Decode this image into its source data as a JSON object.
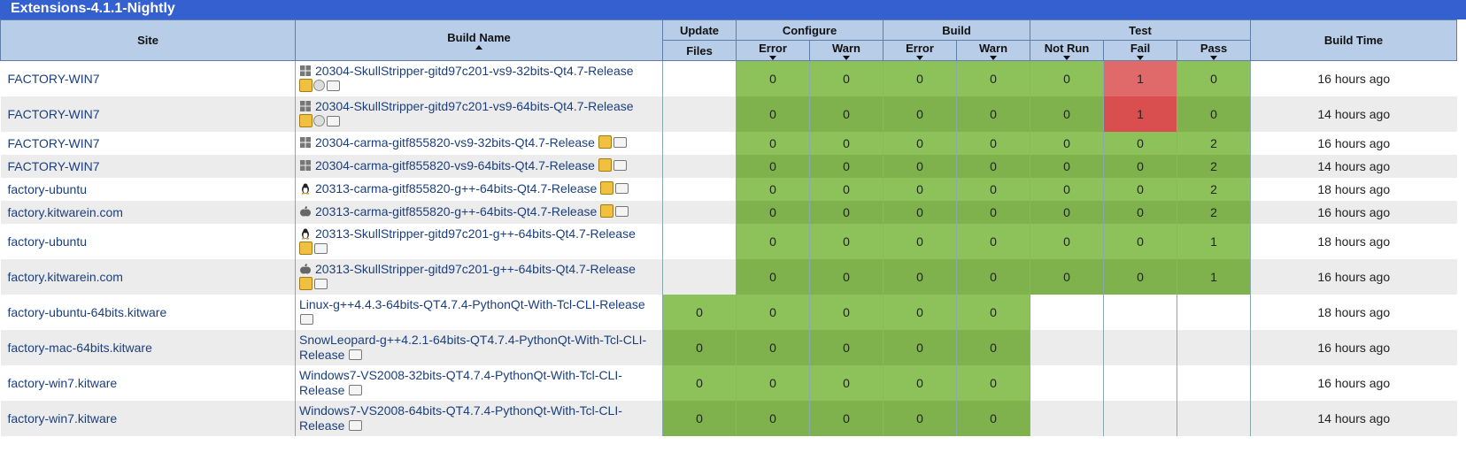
{
  "dashboard": {
    "title": "Extensions-4.1.1-Nightly"
  },
  "headers": {
    "site": "Site",
    "build_name": "Build Name",
    "update": "Update",
    "files": "Files",
    "configure": "Configure",
    "build": "Build",
    "test": "Test",
    "error": "Error",
    "warn": "Warn",
    "not_run": "Not Run",
    "fail": "Fail",
    "pass": "Pass",
    "build_time": "Build Time"
  },
  "colors": {
    "header_bar": "#3560cf",
    "pass_green": "#8dc15a",
    "fail_red": "#e06a6a"
  },
  "rows": [
    {
      "site": "FACTORY-WIN7",
      "os_icon": "windows-icon",
      "name": "20304-SkullStripper-gitd97c201-vs9-32bits-Qt4.7-Release",
      "icons": [
        "package-icon",
        "info-icon",
        "note-icon"
      ],
      "icons_wrap": true,
      "update": "",
      "cfg_err": "0",
      "cfg_warn": "0",
      "bld_err": "0",
      "bld_warn": "0",
      "not_run": "0",
      "fail": "1",
      "pass": "0",
      "time": "16 hours ago",
      "h": 40
    },
    {
      "site": "FACTORY-WIN7",
      "os_icon": "windows-icon",
      "name": "20304-SkullStripper-gitd97c201-vs9-64bits-Qt4.7-Release",
      "icons": [
        "package-icon",
        "info-icon",
        "note-icon"
      ],
      "icons_wrap": true,
      "update": "",
      "cfg_err": "0",
      "cfg_warn": "0",
      "bld_err": "0",
      "bld_warn": "0",
      "not_run": "0",
      "fail": "1",
      "pass": "0",
      "time": "14 hours ago",
      "h": 40
    },
    {
      "site": "FACTORY-WIN7",
      "os_icon": "windows-icon",
      "name": "20304-carma-gitf855820-vs9-32bits-Qt4.7-Release",
      "icons": [
        "package-icon",
        "note-icon"
      ],
      "icons_wrap": false,
      "update": "",
      "cfg_err": "0",
      "cfg_warn": "0",
      "bld_err": "0",
      "bld_warn": "0",
      "not_run": "0",
      "fail": "0",
      "pass": "2",
      "time": "16 hours ago",
      "h": 26
    },
    {
      "site": "FACTORY-WIN7",
      "os_icon": "windows-icon",
      "name": "20304-carma-gitf855820-vs9-64bits-Qt4.7-Release",
      "icons": [
        "package-icon",
        "note-icon"
      ],
      "icons_wrap": false,
      "update": "",
      "cfg_err": "0",
      "cfg_warn": "0",
      "bld_err": "0",
      "bld_warn": "0",
      "not_run": "0",
      "fail": "0",
      "pass": "2",
      "time": "14 hours ago",
      "h": 26
    },
    {
      "site": "factory-ubuntu",
      "os_icon": "linux-icon",
      "name": "20313-carma-gitf855820-g++-64bits-Qt4.7-Release",
      "icons": [
        "package-icon",
        "note-icon"
      ],
      "icons_wrap": false,
      "update": "",
      "cfg_err": "0",
      "cfg_warn": "0",
      "bld_err": "0",
      "bld_warn": "0",
      "not_run": "0",
      "fail": "0",
      "pass": "2",
      "time": "18 hours ago",
      "h": 26
    },
    {
      "site": "factory.kitwarein.com",
      "os_icon": "apple-icon",
      "name": "20313-carma-gitf855820-g++-64bits-Qt4.7-Release",
      "icons": [
        "package-icon",
        "note-icon"
      ],
      "icons_wrap": false,
      "update": "",
      "cfg_err": "0",
      "cfg_warn": "0",
      "bld_err": "0",
      "bld_warn": "0",
      "not_run": "0",
      "fail": "0",
      "pass": "2",
      "time": "16 hours ago",
      "h": 26
    },
    {
      "site": "factory-ubuntu",
      "os_icon": "linux-icon",
      "name": "20313-SkullStripper-gitd97c201-g++-64bits-Qt4.7-Release",
      "icons": [
        "package-icon",
        "note-icon"
      ],
      "icons_wrap": true,
      "update": "",
      "cfg_err": "0",
      "cfg_warn": "0",
      "bld_err": "0",
      "bld_warn": "0",
      "not_run": "0",
      "fail": "0",
      "pass": "1",
      "time": "18 hours ago",
      "h": 40
    },
    {
      "site": "factory.kitwarein.com",
      "os_icon": "apple-icon",
      "name": "20313-SkullStripper-gitd97c201-g++-64bits-Qt4.7-Release",
      "icons": [
        "package-icon",
        "note-icon"
      ],
      "icons_wrap": true,
      "update": "",
      "cfg_err": "0",
      "cfg_warn": "0",
      "bld_err": "0",
      "bld_warn": "0",
      "not_run": "0",
      "fail": "0",
      "pass": "1",
      "time": "16 hours ago",
      "h": 40
    },
    {
      "site": "factory-ubuntu-64bits.kitware",
      "os_icon": "",
      "name": "Linux-g++4.4.3-64bits-QT4.7.4-PythonQt-With-Tcl-CLI-Release",
      "icons": [
        "note-icon"
      ],
      "icons_wrap": true,
      "update": "0",
      "cfg_err": "0",
      "cfg_warn": "0",
      "bld_err": "0",
      "bld_warn": "0",
      "not_run": "",
      "fail": "",
      "pass": "",
      "time": "18 hours ago",
      "h": 40
    },
    {
      "site": "factory-mac-64bits.kitware",
      "os_icon": "",
      "name": "SnowLeopard-g++4.2.1-64bits-QT4.7.4-PythonQt-With-Tcl-CLI-Release",
      "icons": [
        "note-icon"
      ],
      "icons_wrap": false,
      "update": "0",
      "cfg_err": "0",
      "cfg_warn": "0",
      "bld_err": "0",
      "bld_warn": "0",
      "not_run": "",
      "fail": "",
      "pass": "",
      "time": "16 hours ago",
      "h": 40
    },
    {
      "site": "factory-win7.kitware",
      "os_icon": "",
      "name": "Windows7-VS2008-32bits-QT4.7.4-PythonQt-With-Tcl-CLI-Release",
      "icons": [
        "note-icon"
      ],
      "icons_wrap": false,
      "update": "0",
      "cfg_err": "0",
      "cfg_warn": "0",
      "bld_err": "0",
      "bld_warn": "0",
      "not_run": "",
      "fail": "",
      "pass": "",
      "time": "16 hours ago",
      "h": 40
    },
    {
      "site": "factory-win7.kitware",
      "os_icon": "",
      "name": "Windows7-VS2008-64bits-QT4.7.4-PythonQt-With-Tcl-CLI-Release",
      "icons": [
        "note-icon"
      ],
      "icons_wrap": false,
      "update": "0",
      "cfg_err": "0",
      "cfg_warn": "0",
      "bld_err": "0",
      "bld_warn": "0",
      "not_run": "",
      "fail": "",
      "pass": "",
      "time": "14 hours ago",
      "h": 40
    }
  ]
}
